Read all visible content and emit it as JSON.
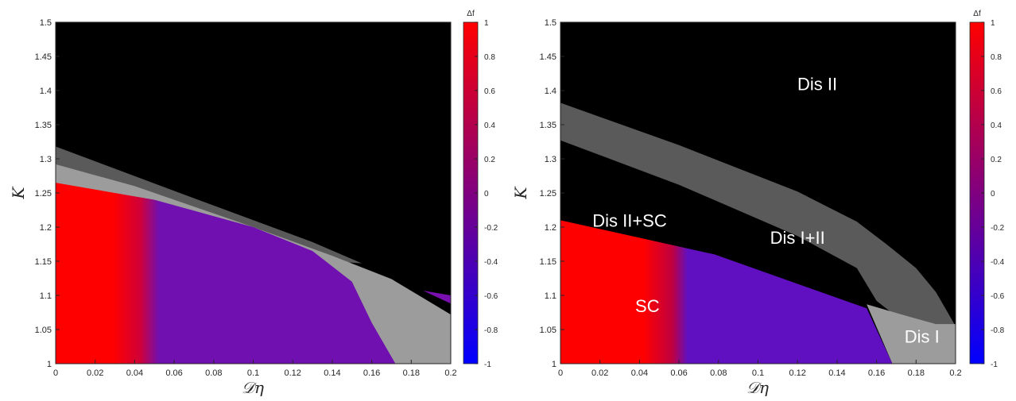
{
  "chart_data": [
    {
      "type": "heatmap",
      "xlabel": "𝒟η",
      "ylabel": "K",
      "xlim": [
        0,
        0.2
      ],
      "ylim": [
        1,
        1.5
      ],
      "xticks": [
        "0",
        "0.02",
        "0.04",
        "0.06",
        "0.08",
        "0.1",
        "0.12",
        "0.14",
        "0.16",
        "0.18",
        "0.2"
      ],
      "yticks": [
        "1",
        "1.05",
        "1.1",
        "1.15",
        "1.2",
        "1.25",
        "1.3",
        "1.35",
        "1.4",
        "1.45",
        "1.5"
      ],
      "background_color": "#000000",
      "regions": [
        {
          "name": "dark-gray",
          "color": "#5a5a5a",
          "boundary": [
            [
              0,
              1.318
            ],
            [
              0.06,
              1.253
            ],
            [
              0.13,
              1.178
            ],
            [
              0.155,
              1.147
            ],
            [
              0.14,
              1.15
            ],
            [
              0.06,
              1.21
            ],
            [
              0,
              1.272
            ]
          ]
        },
        {
          "name": "light-gray",
          "color": "#9c9c9c",
          "boundary": [
            [
              0,
              1.292
            ],
            [
              0.04,
              1.26
            ],
            [
              0.1,
              1.2
            ],
            [
              0.14,
              1.158
            ],
            [
              0.17,
              1.124
            ],
            [
              0.2,
              1.072
            ],
            [
              0.2,
              1
            ],
            [
              0,
              1
            ]
          ]
        },
        {
          "name": "field",
          "color": "gradient",
          "boundary": [
            [
              0,
              1.265
            ],
            [
              0.05,
              1.24
            ],
            [
              0.1,
              1.2
            ],
            [
              0.13,
              1.165
            ],
            [
              0.15,
              1.12
            ],
            [
              0.16,
              1.06
            ],
            [
              0.172,
              1
            ],
            [
              0,
              1
            ]
          ]
        },
        {
          "name": "field-corner",
          "color": "#7a10b0",
          "boundary": [
            [
              0.186,
              1.107
            ],
            [
              0.2,
              1.1
            ],
            [
              0.2,
              1.088
            ]
          ]
        }
      ],
      "colorbar": {
        "label": "Δf",
        "min": -1,
        "max": 1,
        "ticks": [
          "1",
          "0.8",
          "0.6",
          "0.4",
          "0.2",
          "0",
          "-0.2",
          "-0.4",
          "-0.6",
          "-0.8",
          "-1"
        ],
        "colors": [
          "#ff0000",
          "#0000ff"
        ]
      }
    },
    {
      "type": "heatmap",
      "xlabel": "𝒟η",
      "ylabel": "K",
      "xlim": [
        0,
        0.2
      ],
      "ylim": [
        1,
        1.5
      ],
      "xticks": [
        "0",
        "0.02",
        "0.04",
        "0.06",
        "0.08",
        "0.1",
        "0.12",
        "0.14",
        "0.16",
        "0.18",
        "0.2"
      ],
      "yticks": [
        "1",
        "1.05",
        "1.1",
        "1.15",
        "1.2",
        "1.25",
        "1.3",
        "1.35",
        "1.4",
        "1.45",
        "1.5"
      ],
      "background_color": "#000000",
      "regions": [
        {
          "name": "Dis I+II",
          "color": "#5a5a5a",
          "boundary": [
            [
              0,
              1.382
            ],
            [
              0.06,
              1.32
            ],
            [
              0.12,
              1.252
            ],
            [
              0.15,
              1.208
            ],
            [
              0.165,
              1.175
            ],
            [
              0.18,
              1.14
            ],
            [
              0.19,
              1.105
            ],
            [
              0.2,
              1.055
            ],
            [
              0.2,
              1.048
            ],
            [
              0.188,
              1.05
            ],
            [
              0.175,
              1.058
            ],
            [
              0.16,
              1.092
            ],
            [
              0.15,
              1.14
            ],
            [
              0.12,
              1.187
            ],
            [
              0.06,
              1.262
            ],
            [
              0,
              1.327
            ]
          ]
        },
        {
          "name": "Dis I",
          "color": "#9c9c9c",
          "boundary": [
            [
              0.155,
              1.087
            ],
            [
              0.175,
              1.07
            ],
            [
              0.19,
              1.058
            ],
            [
              0.2,
              1.058
            ],
            [
              0.2,
              1
            ],
            [
              0.168,
              1
            ]
          ]
        },
        {
          "name": "SC",
          "color": "gradient",
          "boundary": [
            [
              0,
              1.21
            ],
            [
              0.078,
              1.16
            ],
            [
              0.155,
              1.081
            ],
            [
              0.168,
              1
            ],
            [
              0,
              1
            ]
          ]
        }
      ],
      "annotations": [
        {
          "text": "Dis II",
          "x": 0.13,
          "y": 1.41
        },
        {
          "text": "Dis II+SC",
          "x": 0.035,
          "y": 1.21
        },
        {
          "text": "Dis I+II",
          "x": 0.12,
          "y": 1.185
        },
        {
          "text": "SC",
          "x": 0.044,
          "y": 1.085
        },
        {
          "text": "Dis I",
          "x": 0.183,
          "y": 1.04
        }
      ],
      "colorbar": {
        "label": "Δf",
        "min": -1,
        "max": 1,
        "ticks": [
          "1",
          "0.8",
          "0.6",
          "0.4",
          "0.2",
          "0",
          "-0.2",
          "-0.4",
          "-0.6",
          "-0.8",
          "-1"
        ],
        "colors": [
          "#ff0000",
          "#0000ff"
        ]
      }
    }
  ]
}
